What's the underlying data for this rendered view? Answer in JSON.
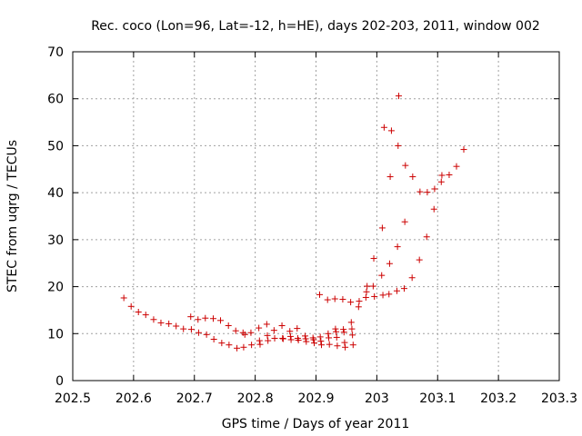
{
  "chart_data": {
    "type": "scatter",
    "title": "Rec. coco (Lon=96, Lat=-12, h=HE), days 202-203, 2011, window 002",
    "xlabel": "GPS time / Days of year 2011",
    "ylabel": "STEC from uqrg / TECUs",
    "xlim": [
      202.5,
      203.3
    ],
    "ylim": [
      0,
      70
    ],
    "xticks": [
      202.5,
      202.6,
      202.7,
      202.8,
      202.9,
      203,
      203.1,
      203.2,
      203.3
    ],
    "xtick_labels": [
      "202.5",
      "202.6",
      "202.7",
      "202.8",
      "202.9",
      "203",
      "203.1",
      "203.2",
      "203.3"
    ],
    "yticks": [
      0,
      10,
      20,
      30,
      40,
      50,
      60,
      70
    ],
    "ytick_labels": [
      "0",
      "10",
      "20",
      "30",
      "40",
      "50",
      "60",
      "70"
    ],
    "grid": true,
    "marker": "+",
    "color": "#cc0000",
    "series": [
      {
        "name": "STEC",
        "points": [
          [
            202.584,
            17.6
          ],
          [
            202.596,
            15.8
          ],
          [
            202.608,
            14.6
          ],
          [
            202.62,
            14.0
          ],
          [
            202.633,
            13.0
          ],
          [
            202.645,
            12.3
          ],
          [
            202.658,
            12.1
          ],
          [
            202.67,
            11.6
          ],
          [
            202.682,
            11.0
          ],
          [
            202.694,
            13.6
          ],
          [
            202.695,
            10.9
          ],
          [
            202.706,
            13.0
          ],
          [
            202.707,
            10.2
          ],
          [
            202.718,
            13.3
          ],
          [
            202.72,
            9.8
          ],
          [
            202.731,
            13.2
          ],
          [
            202.732,
            8.8
          ],
          [
            202.743,
            12.8
          ],
          [
            202.745,
            8.0
          ],
          [
            202.756,
            11.7
          ],
          [
            202.757,
            7.6
          ],
          [
            202.768,
            10.6
          ],
          [
            202.77,
            6.9
          ],
          [
            202.78,
            10.2
          ],
          [
            202.781,
            7.1
          ],
          [
            202.783,
            9.8
          ],
          [
            202.793,
            10.2
          ],
          [
            202.794,
            7.6
          ],
          [
            202.806,
            11.2
          ],
          [
            202.807,
            8.5
          ],
          [
            202.808,
            7.7
          ],
          [
            202.819,
            12.0
          ],
          [
            202.82,
            9.6
          ],
          [
            202.821,
            8.5
          ],
          [
            202.831,
            10.7
          ],
          [
            202.832,
            9.0
          ],
          [
            202.844,
            11.7
          ],
          [
            202.845,
            9.0
          ],
          [
            202.846,
            8.9
          ],
          [
            202.857,
            10.5
          ],
          [
            202.858,
            9.4
          ],
          [
            202.859,
            8.7
          ],
          [
            202.869,
            11.1
          ],
          [
            202.87,
            9.0
          ],
          [
            202.871,
            8.6
          ],
          [
            202.882,
            9.5
          ],
          [
            202.883,
            8.9
          ],
          [
            202.884,
            8.3
          ],
          [
            202.895,
            9.1
          ],
          [
            202.896,
            8.7
          ],
          [
            202.897,
            8.0
          ],
          [
            202.906,
            18.3
          ],
          [
            202.907,
            9.3
          ],
          [
            202.908,
            8.4
          ],
          [
            202.909,
            7.6
          ],
          [
            202.919,
            17.2
          ],
          [
            202.92,
            10.0
          ],
          [
            202.921,
            9.1
          ],
          [
            202.922,
            7.7
          ],
          [
            202.931,
            17.4
          ],
          [
            202.932,
            11.0
          ],
          [
            202.933,
            10.4
          ],
          [
            202.934,
            9.2
          ],
          [
            202.935,
            7.4
          ],
          [
            202.944,
            17.3
          ],
          [
            202.945,
            10.9
          ],
          [
            202.946,
            10.3
          ],
          [
            202.947,
            8.1
          ],
          [
            202.948,
            7.1
          ],
          [
            202.957,
            16.7
          ],
          [
            202.958,
            12.4
          ],
          [
            202.959,
            11.0
          ],
          [
            202.96,
            9.7
          ],
          [
            202.961,
            7.6
          ],
          [
            202.97,
            15.7
          ],
          [
            202.971,
            16.9
          ],
          [
            202.982,
            17.7
          ],
          [
            202.983,
            18.9
          ],
          [
            202.984,
            20.1
          ],
          [
            202.994,
            20.1
          ],
          [
            202.995,
            26.0
          ],
          [
            202.996,
            17.9
          ],
          [
            203.008,
            22.4
          ],
          [
            203.009,
            32.5
          ],
          [
            203.01,
            18.2
          ],
          [
            203.012,
            53.9
          ],
          [
            203.02,
            18.4
          ],
          [
            203.021,
            24.9
          ],
          [
            203.022,
            43.4
          ],
          [
            203.024,
            53.2
          ],
          [
            203.033,
            19.1
          ],
          [
            203.034,
            28.5
          ],
          [
            203.035,
            50.0
          ],
          [
            203.036,
            60.6
          ],
          [
            203.045,
            19.6
          ],
          [
            203.046,
            33.8
          ],
          [
            203.047,
            45.8
          ],
          [
            203.058,
            21.9
          ],
          [
            203.059,
            43.4
          ],
          [
            203.07,
            25.7
          ],
          [
            203.071,
            40.2
          ],
          [
            203.082,
            30.6
          ],
          [
            203.083,
            40.1
          ],
          [
            203.094,
            36.5
          ],
          [
            203.095,
            40.8
          ],
          [
            203.106,
            42.3
          ],
          [
            203.107,
            43.7
          ],
          [
            203.119,
            43.8
          ],
          [
            203.131,
            45.6
          ],
          [
            203.143,
            49.2
          ]
        ]
      }
    ]
  }
}
